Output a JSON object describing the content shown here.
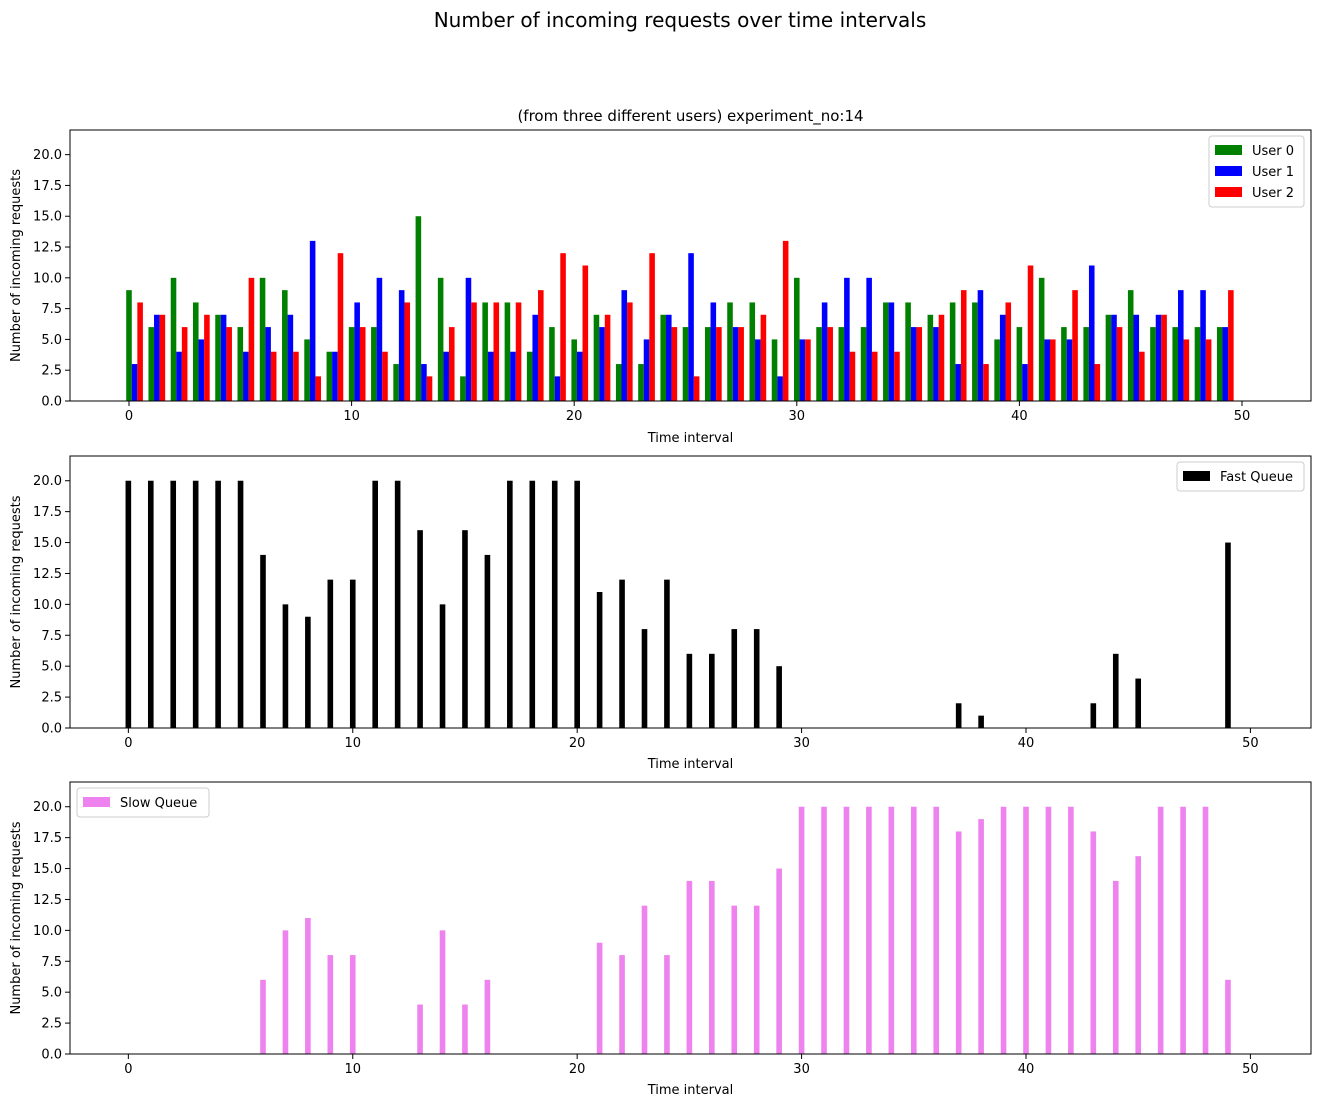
{
  "figure": {
    "suptitle": "Number of incoming requests over time intervals"
  },
  "chart_data": [
    {
      "type": "bar",
      "title": "(from three different users) experiment_no:14",
      "xlabel": "Time interval",
      "ylabel": "Number of incoming requests",
      "xlim": [
        -2.65,
        53.1
      ],
      "ylim": [
        0,
        22
      ],
      "xticks": [
        0,
        10,
        20,
        30,
        40,
        50
      ],
      "yticks": [
        0.0,
        2.5,
        5.0,
        7.5,
        10.0,
        12.5,
        15.0,
        17.5,
        20.0
      ],
      "ytick_labels": [
        "0.0",
        "2.5",
        "5.0",
        "7.5",
        "10.0",
        "12.5",
        "15.0",
        "17.5",
        "20.0"
      ],
      "legend_position": "upper right",
      "bar_width": 0.25,
      "x": [
        0,
        1,
        2,
        3,
        4,
        5,
        6,
        7,
        8,
        9,
        10,
        11,
        12,
        13,
        14,
        15,
        16,
        17,
        18,
        19,
        20,
        21,
        22,
        23,
        24,
        25,
        26,
        27,
        28,
        29,
        30,
        31,
        32,
        33,
        34,
        35,
        36,
        37,
        38,
        39,
        40,
        41,
        42,
        43,
        44,
        45,
        46,
        47,
        48,
        49
      ],
      "series": [
        {
          "name": "User 0",
          "color": "#008000",
          "offset": 0.0,
          "values": [
            9,
            6,
            10,
            8,
            7,
            6,
            10,
            9,
            5,
            4,
            6,
            6,
            3,
            15,
            10,
            2,
            8,
            8,
            4,
            6,
            5,
            7,
            3,
            3,
            7,
            6,
            6,
            8,
            8,
            5,
            10,
            6,
            6,
            6,
            8,
            8,
            7,
            8,
            8,
            5,
            6,
            10,
            6,
            6,
            7,
            9,
            6,
            6,
            6,
            6
          ]
        },
        {
          "name": "User 1",
          "color": "#0000ff",
          "offset": 0.25,
          "values": [
            3,
            7,
            4,
            5,
            7,
            4,
            6,
            7,
            13,
            4,
            8,
            10,
            9,
            3,
            4,
            10,
            4,
            4,
            7,
            2,
            4,
            6,
            9,
            5,
            7,
            12,
            8,
            6,
            5,
            2,
            5,
            8,
            10,
            10,
            8,
            6,
            6,
            3,
            9,
            7,
            3,
            5,
            5,
            11,
            7,
            7,
            7,
            9,
            9,
            6
          ]
        },
        {
          "name": "User 2",
          "color": "#ff0000",
          "offset": 0.5,
          "values": [
            8,
            7,
            6,
            7,
            6,
            10,
            4,
            4,
            2,
            12,
            6,
            4,
            8,
            2,
            6,
            8,
            8,
            8,
            9,
            12,
            11,
            7,
            8,
            12,
            6,
            2,
            6,
            6,
            7,
            13,
            5,
            6,
            4,
            4,
            4,
            6,
            7,
            9,
            3,
            8,
            11,
            5,
            9,
            3,
            6,
            4,
            7,
            5,
            5,
            9
          ]
        }
      ]
    },
    {
      "type": "bar",
      "title": "",
      "xlabel": "Time interval",
      "ylabel": "Number of incoming requests",
      "xlim": [
        -2.6,
        52.7
      ],
      "ylim": [
        0,
        22
      ],
      "xticks": [
        0,
        10,
        20,
        30,
        40,
        50
      ],
      "yticks": [
        0.0,
        2.5,
        5.0,
        7.5,
        10.0,
        12.5,
        15.0,
        17.5,
        20.0
      ],
      "ytick_labels": [
        "0.0",
        "2.5",
        "5.0",
        "7.5",
        "10.0",
        "12.5",
        "15.0",
        "17.5",
        "20.0"
      ],
      "legend_position": "upper right",
      "bar_width": 0.25,
      "x": [
        0,
        1,
        2,
        3,
        4,
        5,
        6,
        7,
        8,
        9,
        10,
        11,
        12,
        13,
        14,
        15,
        16,
        17,
        18,
        19,
        20,
        21,
        22,
        23,
        24,
        25,
        26,
        27,
        28,
        29,
        30,
        31,
        32,
        33,
        34,
        35,
        36,
        37,
        38,
        39,
        40,
        41,
        42,
        43,
        44,
        45,
        46,
        47,
        48,
        49
      ],
      "series": [
        {
          "name": "Fast Queue",
          "color": "#000000",
          "offset": 0.0,
          "values": [
            20,
            20,
            20,
            20,
            20,
            20,
            14,
            10,
            9,
            12,
            12,
            20,
            20,
            16,
            10,
            16,
            14,
            20,
            20,
            20,
            20,
            11,
            12,
            8,
            12,
            6,
            6,
            8,
            8,
            5,
            0,
            0,
            0,
            0,
            0,
            0,
            0,
            2,
            1,
            0,
            0,
            0,
            0,
            2,
            6,
            4,
            0,
            0,
            0,
            15
          ]
        }
      ]
    },
    {
      "type": "bar",
      "title": "",
      "xlabel": "Time interval",
      "ylabel": "Number of incoming requests",
      "xlim": [
        -2.6,
        52.7
      ],
      "ylim": [
        0,
        22
      ],
      "xticks": [
        0,
        10,
        20,
        30,
        40,
        50
      ],
      "yticks": [
        0.0,
        2.5,
        5.0,
        7.5,
        10.0,
        12.5,
        15.0,
        17.5,
        20.0
      ],
      "ytick_labels": [
        "0.0",
        "2.5",
        "5.0",
        "7.5",
        "10.0",
        "12.5",
        "15.0",
        "17.5",
        "20.0"
      ],
      "legend_position": "upper left",
      "bar_width": 0.25,
      "x": [
        0,
        1,
        2,
        3,
        4,
        5,
        6,
        7,
        8,
        9,
        10,
        11,
        12,
        13,
        14,
        15,
        16,
        17,
        18,
        19,
        20,
        21,
        22,
        23,
        24,
        25,
        26,
        27,
        28,
        29,
        30,
        31,
        32,
        33,
        34,
        35,
        36,
        37,
        38,
        39,
        40,
        41,
        42,
        43,
        44,
        45,
        46,
        47,
        48,
        49
      ],
      "series": [
        {
          "name": "Slow Queue",
          "color": "#ee82ee",
          "offset": 0.0,
          "values": [
            0,
            0,
            0,
            0,
            0,
            0,
            6,
            10,
            11,
            8,
            8,
            0,
            0,
            4,
            10,
            4,
            6,
            0,
            0,
            0,
            0,
            9,
            8,
            12,
            8,
            14,
            14,
            12,
            12,
            15,
            20,
            20,
            20,
            20,
            20,
            20,
            20,
            18,
            19,
            20,
            20,
            20,
            20,
            18,
            14,
            16,
            20,
            20,
            20,
            6
          ]
        }
      ]
    }
  ]
}
